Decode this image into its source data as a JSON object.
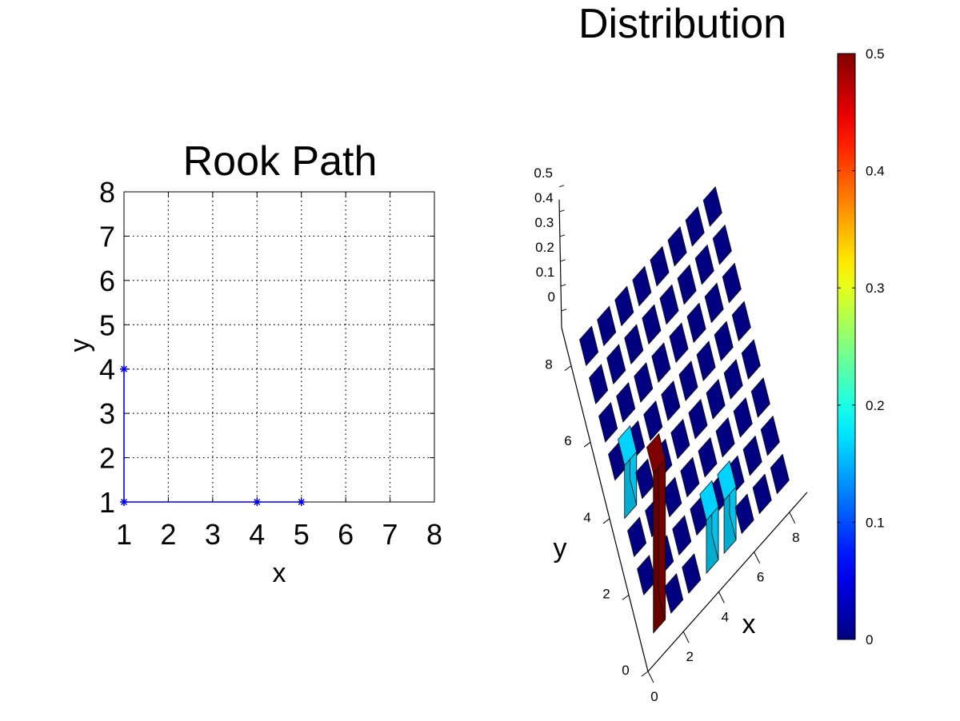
{
  "chart_data": [
    {
      "type": "line",
      "title": "Rook Path",
      "xlabel": "x",
      "ylabel": "y",
      "xlim": [
        1,
        8
      ],
      "ylim": [
        1,
        8
      ],
      "xticks": [
        "1",
        "2",
        "3",
        "4",
        "5",
        "6",
        "7",
        "8"
      ],
      "yticks": [
        "1",
        "2",
        "3",
        "4",
        "5",
        "6",
        "7",
        "8"
      ],
      "grid": true,
      "marker": "*",
      "line_color": "#0000ee",
      "series": [
        {
          "x": [
            5,
            4,
            1,
            1
          ],
          "y": [
            1,
            1,
            1,
            4
          ]
        }
      ]
    },
    {
      "type": "bar3d",
      "title": "Distribution",
      "xlabel": "x",
      "ylabel": "y",
      "xlim": [
        0,
        9
      ],
      "ylim": [
        0,
        9
      ],
      "zlim": [
        0,
        0.5
      ],
      "xticks": [
        "0",
        "2",
        "4",
        "6",
        "8"
      ],
      "yticks": [
        "0",
        "2",
        "4",
        "6",
        "8"
      ],
      "zticks": [
        "0",
        "0.1",
        "0.2",
        "0.3",
        "0.4",
        "0.5"
      ],
      "colormap": "jet",
      "colorbar": {
        "min": 0,
        "max": 0.5,
        "ticks": [
          "0",
          "0.1",
          "0.2",
          "0.3",
          "0.4",
          "0.5"
        ]
      },
      "grid_size": [
        8,
        8
      ],
      "default_value": 0,
      "bars": [
        {
          "x": 1,
          "y": 1,
          "z": 0.5
        },
        {
          "x": 4,
          "y": 1,
          "z": 0.166
        },
        {
          "x": 5,
          "y": 1,
          "z": 0.166
        },
        {
          "x": 1,
          "y": 4,
          "z": 0.166
        }
      ]
    }
  ]
}
